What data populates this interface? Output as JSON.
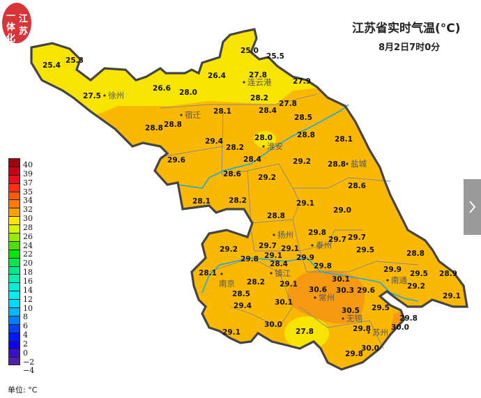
{
  "logo": {
    "chars": [
      "一",
      "体",
      "化",
      "江",
      "苏"
    ]
  },
  "header": {
    "title": "江苏省实时气温(°C)",
    "subtitle": "8月2日7时0分"
  },
  "legend": {
    "labels": [
      "40",
      "39",
      "37",
      "35",
      "34",
      "32",
      "30",
      "28",
      "26",
      "24",
      "22",
      "20",
      "18",
      "16",
      "14",
      "12",
      "10",
      "8",
      "6",
      "4",
      "2",
      "0",
      "−2",
      "−4"
    ],
    "colors": [
      "#a00010",
      "#c8001a",
      "#e8101a",
      "#ff3010",
      "#ff5a08",
      "#ff7a0a",
      "#ffa000",
      "#ffe400",
      "#d4f400",
      "#96ea00",
      "#50e000",
      "#00e800",
      "#00e850",
      "#00e888",
      "#00f0b0",
      "#00f0d8",
      "#00f0f0",
      "#00d8ff",
      "#00b8ff",
      "#0080ff",
      "#0040ff",
      "#0018ff",
      "#1000f0",
      "#3a10c8",
      "#5020a8"
    ],
    "unit": "单位: °C"
  },
  "colors": {
    "yellow": "#f7e400",
    "orange": "#fbb800",
    "dark_orange": "#f59a10",
    "river": "#1ca8e0",
    "border": "#444444"
  },
  "side_button": {
    "icon": "chevron-right-icon"
  },
  "cities": [
    {
      "name": "徐州"
    },
    {
      "name": "连云港"
    },
    {
      "name": "宿迁"
    },
    {
      "name": "淮安"
    },
    {
      "name": "盐城"
    },
    {
      "name": "扬州"
    },
    {
      "name": "泰州"
    },
    {
      "name": "镇江"
    },
    {
      "name": "南京"
    },
    {
      "name": "南通"
    },
    {
      "name": "常州"
    },
    {
      "name": "无锡"
    },
    {
      "name": "苏州"
    }
  ],
  "stations": [
    "25.4",
    "25.3",
    "25.0",
    "25.5",
    "26.4",
    "27.8",
    "27.9",
    "26.6",
    "28.0",
    "27.5",
    "28.2",
    "28.4",
    "27.8",
    "28.1",
    "28.8",
    "28.5",
    "28.8",
    "28.8",
    "28.1",
    "28.0",
    "29.4",
    "28.2",
    "28.4",
    "29.6",
    "29.2",
    "28.8",
    "28.6",
    "29.2",
    "28.6",
    "28.1",
    "28.2",
    "29.1",
    "29.0",
    "28.8",
    "29.8",
    "29.7",
    "29.7",
    "29.2",
    "29.7",
    "29.1",
    "29.1",
    "29.8",
    "28.8",
    "29.5",
    "29.9",
    "29.8",
    "28.4",
    "29.9",
    "29.5",
    "28.9",
    "28.1",
    "28.5",
    "28.2",
    "29.1",
    "30.1",
    "30.3",
    "29.2",
    "30.6",
    "29.6",
    "29.1",
    "29.4",
    "30.1",
    "30.5",
    "29.5",
    "29.8",
    "30.0",
    "29.8",
    "30.0",
    "27.8",
    "29.1",
    "30.0",
    "29.8"
  ]
}
